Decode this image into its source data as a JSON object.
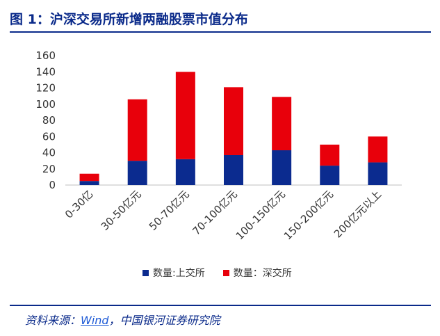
{
  "title": "图 1：沪深交易所新增两融股票市值分布",
  "source": {
    "prefix": "资料来源：",
    "link": "Wind",
    "suffix": "，中国银河证券研究院"
  },
  "chart_data": {
    "type": "bar",
    "stacked": true,
    "categories": [
      "0-30亿",
      "30-50亿元",
      "50-70亿元",
      "70-100亿元",
      "100-150亿元",
      "150-200亿元",
      "200亿元以上"
    ],
    "series": [
      {
        "name": "数量:上交所",
        "color": "#0b2b8f",
        "values": [
          5,
          30,
          32,
          37,
          43,
          24,
          28
        ]
      },
      {
        "name": "数量：深交所",
        "color": "#e8000b",
        "values": [
          9,
          76,
          108,
          84,
          66,
          26,
          32
        ]
      }
    ],
    "ylim": [
      0,
      160
    ],
    "yticks": [
      0,
      20,
      40,
      60,
      80,
      100,
      120,
      140,
      160
    ],
    "legend_position": "bottom",
    "grid": false
  }
}
